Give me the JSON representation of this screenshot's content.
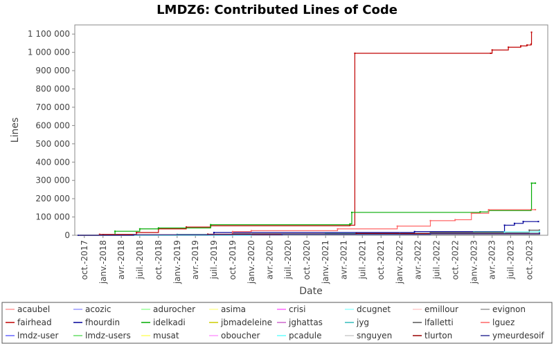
{
  "chart_data": {
    "type": "line",
    "step": true,
    "title": "LMDZ6: Contributed Lines of Code",
    "xlabel": "Date",
    "ylabel": "Lines",
    "xlim": [
      "2017-08-15",
      "2023-12-31"
    ],
    "ylim": [
      0,
      1150000
    ],
    "y_ticks": [
      0,
      100000,
      200000,
      300000,
      400000,
      500000,
      600000,
      700000,
      800000,
      900000,
      1000000,
      1100000
    ],
    "y_tick_labels": [
      "0",
      "100 000",
      "200 000",
      "300 000",
      "400 000",
      "500 000",
      "600 000",
      "700 000",
      "800 000",
      "900 000",
      "1 000 000",
      "1 100 000"
    ],
    "x_ticks": [
      "2017-10-01",
      "2018-01-01",
      "2018-04-01",
      "2018-07-01",
      "2018-10-01",
      "2019-01-01",
      "2019-04-01",
      "2019-07-01",
      "2019-10-01",
      "2020-01-01",
      "2020-04-01",
      "2020-07-01",
      "2020-10-01",
      "2021-01-01",
      "2021-04-01",
      "2021-07-01",
      "2021-10-01",
      "2022-01-01",
      "2022-04-01",
      "2022-07-01",
      "2022-10-01",
      "2023-01-01",
      "2023-04-01",
      "2023-07-01",
      "2023-10-01"
    ],
    "x_tick_labels": [
      "oct.-2017",
      "janv.-2018",
      "avr.-2018",
      "juil.-2018",
      "oct.-2018",
      "janv.-2019",
      "avr.-2019",
      "juil.-2019",
      "oct.-2019",
      "janv.-2020",
      "avr.-2020",
      "juil.-2020",
      "oct.-2020",
      "janv.-2021",
      "avr.-2021",
      "juil.-2021",
      "oct.-2021",
      "janv.-2022",
      "avr.-2022",
      "juil.-2022",
      "oct.-2022",
      "janv.-2023",
      "avr.-2023",
      "juil.-2023",
      "oct.-2023"
    ],
    "grid": false,
    "legend_position": "bottom",
    "legend_columns": 8,
    "series": [
      {
        "name": "acaubel",
        "color": "#ff9999",
        "points": []
      },
      {
        "name": "acozic",
        "color": "#9999ff",
        "points": []
      },
      {
        "name": "adurocher",
        "color": "#99ff99",
        "points": []
      },
      {
        "name": "asima",
        "color": "#ffff99",
        "points": []
      },
      {
        "name": "crisi",
        "color": "#ff66ff",
        "points": []
      },
      {
        "name": "dcugnet",
        "color": "#99ffff",
        "points": []
      },
      {
        "name": "emillour",
        "color": "#ffcccc",
        "points": [
          [
            "2017-09-01",
            0
          ],
          [
            "2018-03-01",
            1000
          ],
          [
            "2019-06-01",
            2000
          ],
          [
            "2021-06-01",
            4000
          ],
          [
            "2023-11-20",
            5000
          ]
        ]
      },
      {
        "name": "evignon",
        "color": "#999999",
        "points": [
          [
            "2017-09-01",
            0
          ],
          [
            "2018-06-01",
            1000
          ],
          [
            "2020-03-01",
            2000
          ],
          [
            "2022-03-01",
            3000
          ],
          [
            "2023-11-20",
            3000
          ]
        ]
      },
      {
        "name": "fairhead",
        "color": "#c00000",
        "points": [
          [
            "2017-09-01",
            0
          ],
          [
            "2017-12-15",
            5000
          ],
          [
            "2018-06-15",
            15000
          ],
          [
            "2018-10-01",
            35000
          ],
          [
            "2019-02-15",
            45000
          ],
          [
            "2019-06-15",
            52000
          ],
          [
            "2021-05-01",
            55000
          ],
          [
            "2021-05-25",
            995000
          ],
          [
            "2023-03-25",
            995000
          ],
          [
            "2023-04-01",
            1013000
          ],
          [
            "2023-06-20",
            1028000
          ],
          [
            "2023-08-20",
            1035000
          ],
          [
            "2023-09-20",
            1040000
          ],
          [
            "2023-10-10",
            1045000
          ],
          [
            "2023-10-12",
            1110000
          ]
        ]
      },
      {
        "name": "fhourdin",
        "color": "#000099",
        "points": [
          [
            "2017-09-01",
            0
          ],
          [
            "2019-07-01",
            15000
          ],
          [
            "2022-03-15",
            20000
          ],
          [
            "2023-06-01",
            55000
          ],
          [
            "2023-07-20",
            65000
          ],
          [
            "2023-09-01",
            75000
          ],
          [
            "2023-11-15",
            75000
          ]
        ]
      },
      {
        "name": "idelkadi",
        "color": "#00aa00",
        "points": [
          [
            "2017-09-01",
            0
          ],
          [
            "2018-03-01",
            22000
          ],
          [
            "2018-07-01",
            35000
          ],
          [
            "2018-10-01",
            40000
          ],
          [
            "2019-06-15",
            58000
          ],
          [
            "2021-05-01",
            62000
          ],
          [
            "2021-05-10",
            125000
          ],
          [
            "2023-02-01",
            128000
          ],
          [
            "2023-03-15",
            135000
          ],
          [
            "2023-10-10",
            140000
          ],
          [
            "2023-10-12",
            285000
          ],
          [
            "2023-10-31",
            285000
          ]
        ]
      },
      {
        "name": "jbmadeleine",
        "color": "#cccc00",
        "points": []
      },
      {
        "name": "jghattas",
        "color": "#cc66cc",
        "points": []
      },
      {
        "name": "jyg",
        "color": "#33bbbb",
        "points": [
          [
            "2017-09-01",
            0
          ],
          [
            "2019-01-01",
            5000
          ],
          [
            "2021-01-01",
            10000
          ],
          [
            "2023-01-01",
            18000
          ],
          [
            "2023-11-20",
            22000
          ]
        ]
      },
      {
        "name": "lfalletti",
        "color": "#555555",
        "points": [
          [
            "2017-09-01",
            0
          ],
          [
            "2019-10-01",
            8000
          ],
          [
            "2022-06-01",
            15000
          ],
          [
            "2023-10-01",
            28000
          ],
          [
            "2023-11-20",
            28000
          ]
        ]
      },
      {
        "name": "lguez",
        "color": "#ff6666",
        "points": [
          [
            "2017-09-01",
            0
          ],
          [
            "2019-10-01",
            20000
          ],
          [
            "2020-01-01",
            25000
          ],
          [
            "2021-03-01",
            35000
          ],
          [
            "2021-12-20",
            50000
          ],
          [
            "2022-06-01",
            80000
          ],
          [
            "2022-10-01",
            85000
          ],
          [
            "2022-12-20",
            120000
          ],
          [
            "2023-03-15",
            140000
          ],
          [
            "2023-10-31",
            140000
          ]
        ]
      },
      {
        "name": "lmdz-user",
        "color": "#6666ff",
        "points": []
      },
      {
        "name": "lmdz-users",
        "color": "#66dd66",
        "points": []
      },
      {
        "name": "musat",
        "color": "#ffff66",
        "points": []
      },
      {
        "name": "oboucher",
        "color": "#ff99ff",
        "points": []
      },
      {
        "name": "pcadule",
        "color": "#66ffff",
        "points": [
          [
            "2017-09-01",
            0
          ],
          [
            "2020-01-01",
            5000
          ],
          [
            "2022-01-01",
            10000
          ],
          [
            "2023-06-01",
            18000
          ],
          [
            "2023-11-20",
            22000
          ]
        ]
      },
      {
        "name": "snguyen",
        "color": "#cccccc",
        "points": []
      },
      {
        "name": "tlurton",
        "color": "#990000",
        "points": [
          [
            "2017-09-01",
            0
          ],
          [
            "2018-01-01",
            3000
          ],
          [
            "2019-06-01",
            6000
          ],
          [
            "2021-06-01",
            10000
          ],
          [
            "2023-11-20",
            12000
          ]
        ]
      },
      {
        "name": "ymeurdesoif",
        "color": "#333399",
        "points": [
          [
            "2017-09-01",
            0
          ],
          [
            "2018-06-01",
            3000
          ],
          [
            "2020-06-01",
            5000
          ],
          [
            "2022-06-01",
            8000
          ],
          [
            "2023-11-20",
            10000
          ]
        ]
      }
    ]
  }
}
